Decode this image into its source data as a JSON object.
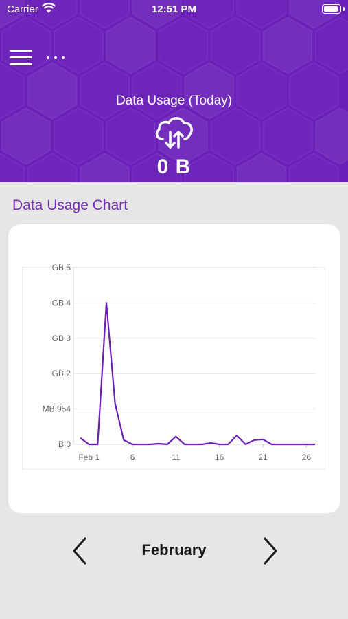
{
  "status_bar": {
    "carrier": "Carrier",
    "time": "12:51 PM",
    "battery_level": 0.95
  },
  "header": {
    "usage_title": "Data Usage (Today)",
    "usage_value": "0 B",
    "background_color": "#6a1fb8",
    "icons": [
      "menu-icon",
      "more-icon",
      "cloud-transfer-icon"
    ]
  },
  "section": {
    "title": "Data Usage Chart",
    "title_color": "#7a2bc0"
  },
  "chart_data": {
    "type": "line",
    "y_tick_labels": [
      "B 0",
      "MB 954",
      "GB 2",
      "GB 3",
      "GB 4",
      "GB 5"
    ],
    "y_tick_values": [
      0,
      1,
      2,
      3,
      4,
      5
    ],
    "x_tick_labels": [
      "Feb 1",
      "6",
      "11",
      "16",
      "21",
      "26"
    ],
    "x_tick_values": [
      1,
      6,
      11,
      16,
      21,
      26
    ],
    "ylim": [
      0,
      5
    ],
    "xlim": [
      0,
      27
    ],
    "grid": true,
    "line_color": "#6a1fb8",
    "x": [
      0,
      1,
      2,
      3,
      4,
      5,
      6,
      7,
      8,
      9,
      10,
      11,
      12,
      13,
      14,
      15,
      16,
      17,
      18,
      19,
      20,
      21,
      22,
      23,
      24,
      25,
      26,
      27
    ],
    "y": [
      0.18,
      0.0,
      0.0,
      4.0,
      1.15,
      0.12,
      0.0,
      0.0,
      0.0,
      0.02,
      0.0,
      0.22,
      0.0,
      0.0,
      0.0,
      0.04,
      0.0,
      0.0,
      0.25,
      0.0,
      0.12,
      0.14,
      0.0,
      0.0,
      0.0,
      0.0,
      0.0,
      0.0
    ]
  },
  "month_nav": {
    "month": "February",
    "prev_icon": "chevron-left-icon",
    "next_icon": "chevron-right-icon"
  }
}
